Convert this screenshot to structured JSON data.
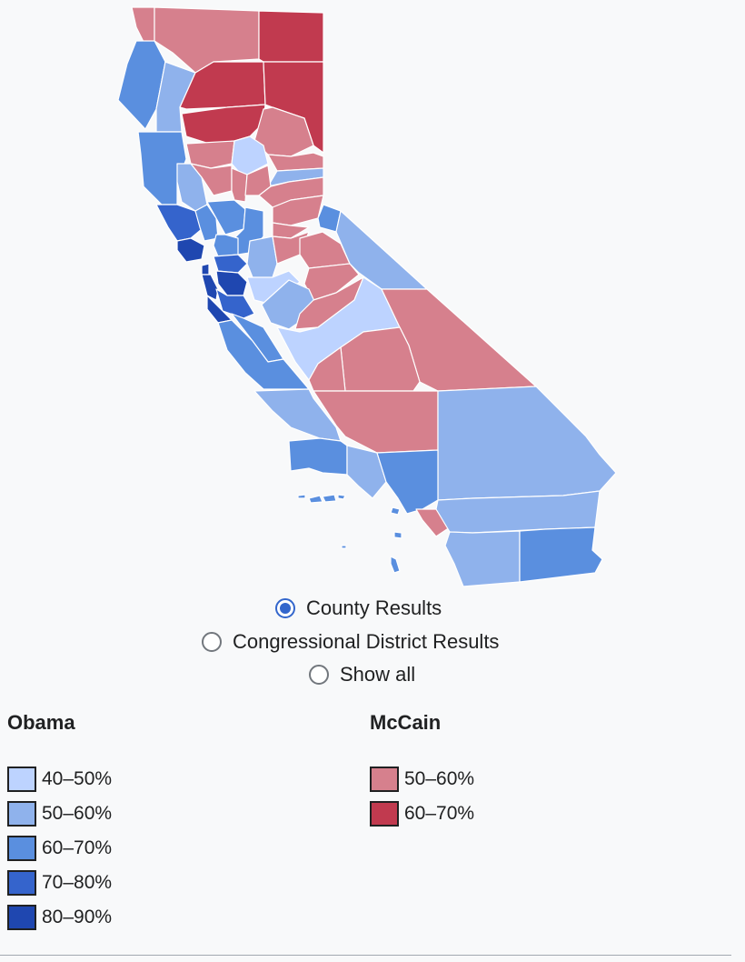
{
  "colors": {
    "obama_40_50": "#bdd3ff",
    "obama_50_60": "#8fb2ec",
    "obama_60_70": "#5a8fdf",
    "obama_70_80": "#3564cc",
    "obama_80_90": "#1f47b0",
    "mccain_50_60": "#d6808d",
    "mccain_60_70": "#c13a4f"
  },
  "view_options": [
    {
      "label": "County Results",
      "selected": true
    },
    {
      "label": "Congressional District Results",
      "selected": false
    },
    {
      "label": "Show all",
      "selected": false
    }
  ],
  "legend": {
    "obama": {
      "title": "Obama",
      "items": [
        {
          "label": "40–50%",
          "color": "#bdd3ff"
        },
        {
          "label": "50–60%",
          "color": "#8fb2ec"
        },
        {
          "label": "60–70%",
          "color": "#5a8fdf"
        },
        {
          "label": "70–80%",
          "color": "#3564cc"
        },
        {
          "label": "80–90%",
          "color": "#1f47b0"
        }
      ]
    },
    "mccain": {
      "title": "McCain",
      "items": [
        {
          "label": "50–60%",
          "color": "#d6808d"
        },
        {
          "label": "60–70%",
          "color": "#c13a4f"
        }
      ]
    }
  }
}
